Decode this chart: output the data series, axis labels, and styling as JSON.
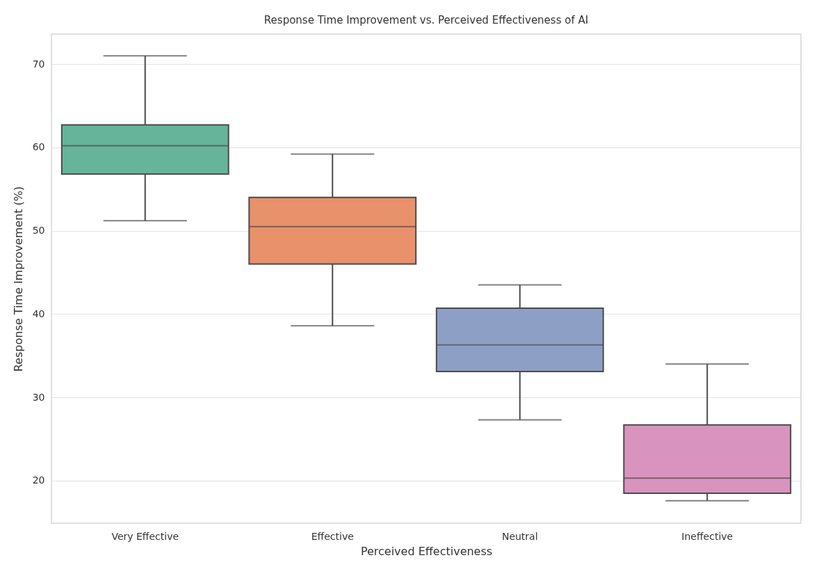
{
  "chart_data": {
    "type": "box",
    "title": "Response Time Improvement vs. Perceived Effectiveness of AI",
    "xlabel": "Perceived Effectiveness",
    "ylabel": "Response Time Improvement (%)",
    "categories": [
      "Very Effective",
      "Effective",
      "Neutral",
      "Ineffective"
    ],
    "colors": [
      "#66b49a",
      "#e8916b",
      "#8e9fc6",
      "#d993bf"
    ],
    "boxes": [
      {
        "low": 51.2,
        "q1": 56.8,
        "median": 60.2,
        "q3": 62.7,
        "high": 71.0
      },
      {
        "low": 38.6,
        "q1": 46.0,
        "median": 50.5,
        "q3": 54.0,
        "high": 59.2
      },
      {
        "low": 27.3,
        "q1": 33.1,
        "median": 36.3,
        "q3": 40.7,
        "high": 43.5
      },
      {
        "low": 17.6,
        "q1": 18.5,
        "median": 20.3,
        "q3": 26.7,
        "high": 34.0
      }
    ],
    "ylim": [
      14.9,
      73.6
    ],
    "yticks": [
      20,
      30,
      40,
      50,
      60,
      70
    ],
    "grid": "y"
  }
}
